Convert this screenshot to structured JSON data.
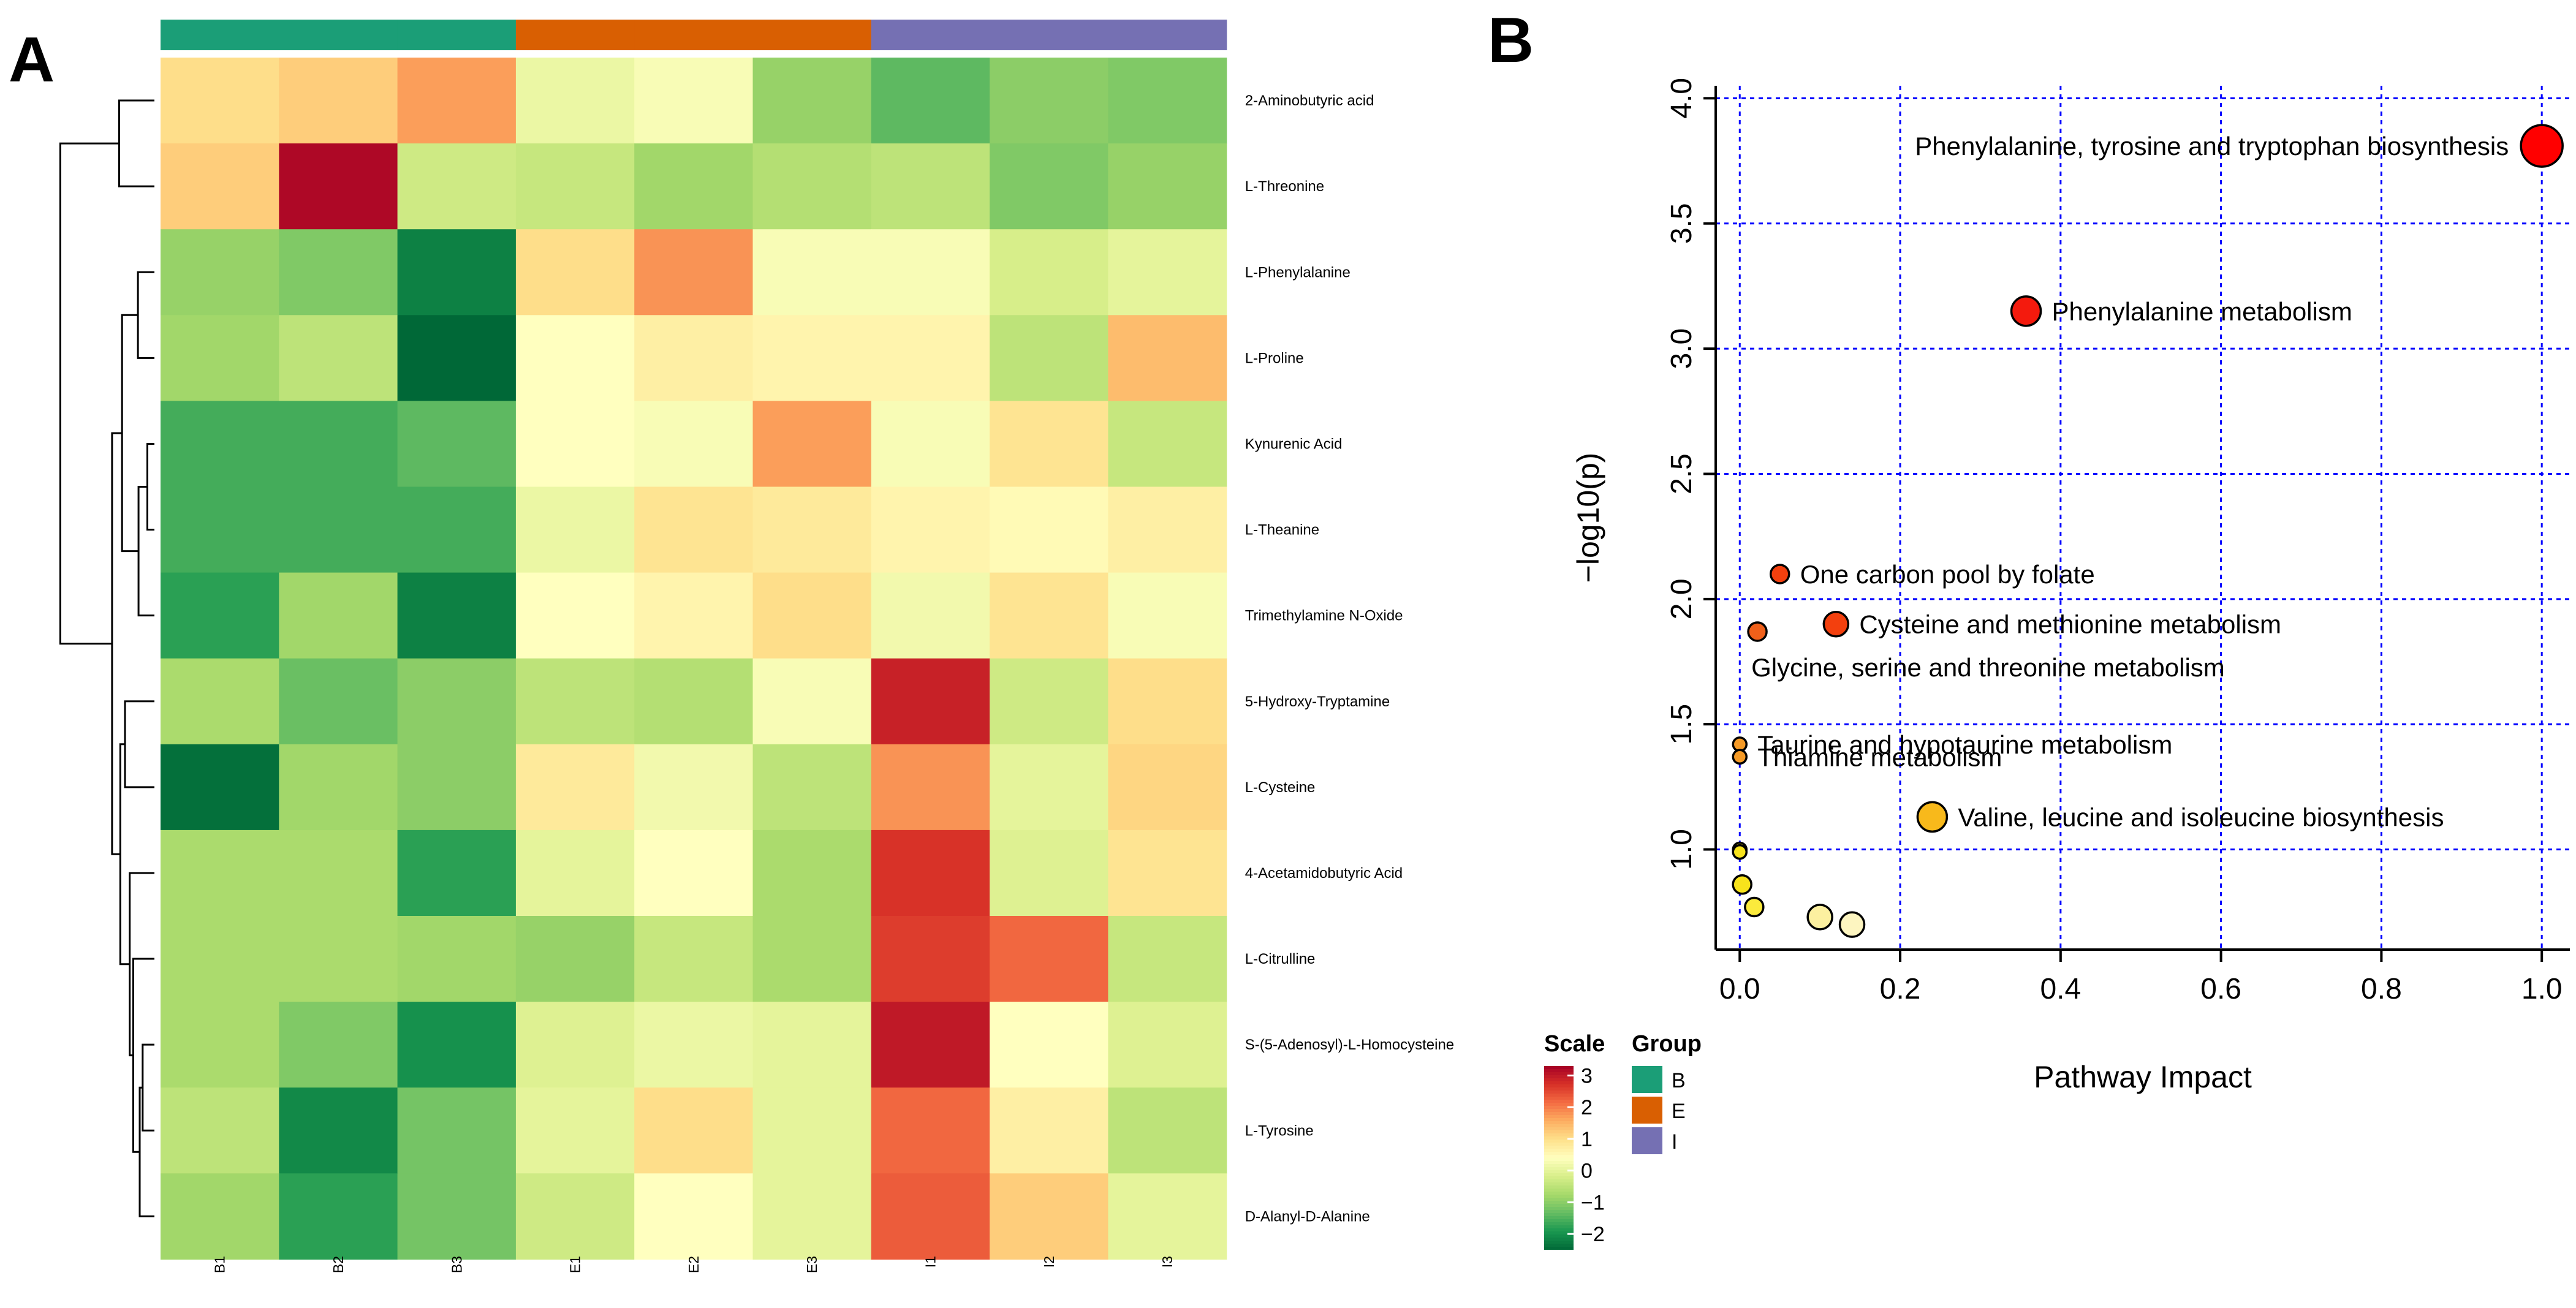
{
  "panels": {
    "a_label": "A",
    "b_label": "B"
  },
  "chart_data": [
    {
      "type": "heatmap",
      "panel": "A",
      "columns": [
        "B1",
        "B2",
        "B3",
        "E1",
        "E2",
        "E3",
        "I1",
        "I2",
        "I3"
      ],
      "column_groups": [
        "B",
        "B",
        "B",
        "E",
        "E",
        "E",
        "I",
        "I",
        "I"
      ],
      "rows": [
        "2-Aminobutyric acid",
        "L-Threonine",
        "L-Phenylalanine",
        "L-Proline",
        "Kynurenic Acid",
        "L-Theanine",
        "Trimethylamine N-Oxide",
        "5-Hydroxy-Tryptamine",
        "L-Cysteine",
        "4-Acetamidobutyric Acid",
        "L-Citrulline",
        "S-(5-Adenosyl)-L-Homocysteine",
        "L-Tyrosine",
        "D-Alanyl-D-Alanine"
      ],
      "values": [
        [
          1.0,
          1.2,
          1.7,
          0.1,
          0.3,
          -0.9,
          -1.4,
          -1.0,
          -1.1
        ],
        [
          1.2,
          3.2,
          -0.3,
          -0.4,
          -0.8,
          -0.6,
          -0.5,
          -1.1,
          -0.9
        ],
        [
          -0.9,
          -1.1,
          -2.2,
          1.0,
          1.8,
          0.3,
          0.3,
          -0.2,
          0.0
        ],
        [
          -0.8,
          -0.5,
          -2.5,
          0.4,
          0.7,
          0.6,
          0.6,
          -0.5,
          1.4
        ],
        [
          -1.6,
          -1.6,
          -1.4,
          0.4,
          0.3,
          1.7,
          0.3,
          0.9,
          -0.4
        ],
        [
          -1.6,
          -1.6,
          -1.6,
          0.1,
          0.9,
          0.8,
          0.6,
          0.5,
          0.7
        ],
        [
          -1.8,
          -0.8,
          -2.2,
          0.4,
          0.6,
          1.0,
          0.2,
          0.9,
          0.3
        ],
        [
          -0.7,
          -1.3,
          -1.0,
          -0.5,
          -0.6,
          0.3,
          2.9,
          -0.3,
          1.0
        ],
        [
          -2.4,
          -0.8,
          -1.0,
          0.8,
          0.2,
          -0.5,
          1.8,
          0.0,
          1.1
        ],
        [
          -0.7,
          -0.7,
          -1.8,
          0.0,
          0.4,
          -0.7,
          2.7,
          -0.1,
          0.9
        ],
        [
          -0.7,
          -0.7,
          -0.8,
          -0.9,
          -0.4,
          -0.7,
          2.6,
          2.2,
          -0.4
        ],
        [
          -0.7,
          -1.1,
          -2.0,
          -0.1,
          0.1,
          0.0,
          3.0,
          0.4,
          -0.1
        ],
        [
          -0.5,
          -2.1,
          -1.2,
          0.0,
          1.0,
          0.0,
          2.2,
          0.7,
          -0.5
        ],
        [
          -0.8,
          -1.8,
          -1.2,
          -0.3,
          0.4,
          0.0,
          2.3,
          1.2,
          0.0
        ]
      ],
      "legend": {
        "scale_title": "Scale",
        "scale_ticks": [
          "3",
          "2",
          "1",
          "0",
          "−1",
          "−2"
        ],
        "scale_tick_values": [
          3,
          2,
          1,
          0,
          -1,
          -2
        ],
        "scale_range": [
          -2.5,
          3.3
        ],
        "group_title": "Group",
        "groups": [
          {
            "name": "B",
            "color": "#1b9e77"
          },
          {
            "name": "E",
            "color": "#d95f02"
          },
          {
            "name": "I",
            "color": "#7570b3"
          }
        ]
      },
      "colorscale": [
        "#006837",
        "#1a9850",
        "#66bd63",
        "#a6d96a",
        "#d9ef8b",
        "#ffffbf",
        "#fee08b",
        "#fdae61",
        "#f46d43",
        "#d73027",
        "#a50026"
      ]
    },
    {
      "type": "scatter",
      "panel": "B",
      "xlabel": "Pathway Impact",
      "ylabel": "−log10(p)",
      "xlim": [
        -0.03,
        1.035
      ],
      "ylim": [
        0.6,
        4.05
      ],
      "xticks": [
        0.0,
        0.2,
        0.4,
        0.6,
        0.8,
        1.0
      ],
      "xtick_labels": [
        "0.0",
        "0.2",
        "0.4",
        "0.6",
        "0.8",
        "1.0"
      ],
      "yticks": [
        1.0,
        1.5,
        2.0,
        2.5,
        3.0,
        3.5,
        4.0
      ],
      "ytick_labels": [
        "1.0",
        "1.5",
        "2.0",
        "2.5",
        "3.0",
        "3.5",
        "4.0"
      ],
      "grid": true,
      "points": [
        {
          "x": 1.0,
          "y": 3.81,
          "label": "Phenylalanine, tyrosine and tryptophan biosynthesis",
          "label_side": "left",
          "color": "#ff0000",
          "size": "xl"
        },
        {
          "x": 0.357,
          "y": 3.15,
          "label": "Phenylalanine metabolism",
          "label_side": "right",
          "color": "#f41a0d",
          "size": "l"
        },
        {
          "x": 0.05,
          "y": 2.1,
          "label": "One carbon pool by folate",
          "label_side": "right",
          "color": "#f3400e",
          "size": "s"
        },
        {
          "x": 0.12,
          "y": 1.9,
          "label": "Cysteine and methionine metabolism",
          "label_side": "right",
          "color": "#f3400e",
          "size": "m"
        },
        {
          "x": 0.022,
          "y": 1.87,
          "label": "Glycine, serine and threonine metabolism",
          "label_side": "below",
          "color": "#f0601a",
          "size": "s"
        },
        {
          "x": 0.0,
          "y": 1.42,
          "label": "Taurine and hypotaurine metabolism",
          "label_side": "right",
          "color": "#f59a26",
          "size": "xs"
        },
        {
          "x": 0.0,
          "y": 1.37,
          "label": "Thiamine metabolism",
          "label_side": "right",
          "color": "#f59a26",
          "size": "xs"
        },
        {
          "x": 0.24,
          "y": 1.13,
          "label": "Valine, leucine and isoleucine biosynthesis",
          "label_side": "right",
          "color": "#f8b91b",
          "size": "l"
        },
        {
          "x": 0.0,
          "y": 1.0,
          "label": "",
          "color": "#f8e31c",
          "size": "xs"
        },
        {
          "x": 0.0,
          "y": 0.99,
          "label": "",
          "color": "#f8e31c",
          "size": "xs"
        },
        {
          "x": 0.003,
          "y": 0.86,
          "label": "",
          "color": "#f8e31c",
          "size": "s"
        },
        {
          "x": 0.018,
          "y": 0.77,
          "label": "",
          "color": "#fbea3c",
          "size": "s"
        },
        {
          "x": 0.1,
          "y": 0.73,
          "label": "",
          "color": "#fcf0a0",
          "size": "m"
        },
        {
          "x": 0.14,
          "y": 0.7,
          "label": "",
          "color": "#fdf5c0",
          "size": "m"
        }
      ],
      "grid_color": "#0000ff"
    }
  ]
}
